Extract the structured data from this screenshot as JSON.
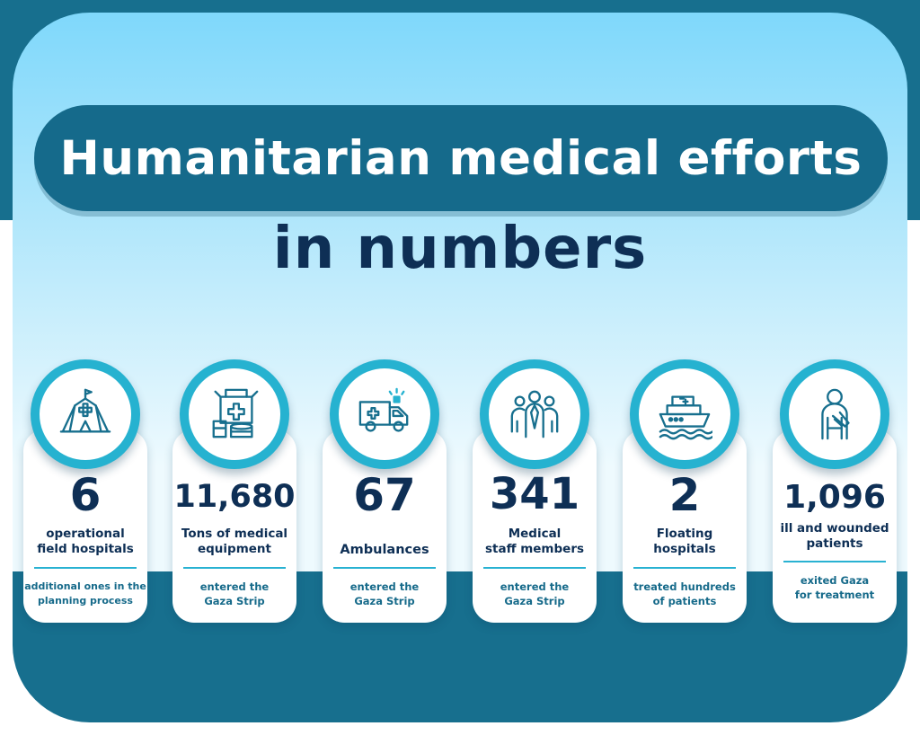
{
  "header": {
    "title": "Humanitarian medical efforts",
    "subtitle": "in numbers"
  },
  "colors": {
    "brand_teal": "#176f8e",
    "navy_text": "#0e2f55",
    "accent_cyan": "#26b2d0"
  },
  "cards": [
    {
      "icon": "field-hospital-tent-icon",
      "number": "6",
      "label": "operational\nfield hospitals",
      "note": "additional ones in the\nplanning process"
    },
    {
      "icon": "medical-supplies-boxes-icon",
      "number": "11,680",
      "label": "Tons of medical\nequipment",
      "note": "entered the\nGaza Strip"
    },
    {
      "icon": "ambulance-icon",
      "number": "67",
      "label": "Ambulances",
      "note": "entered the\nGaza Strip"
    },
    {
      "icon": "medical-staff-icon",
      "number": "341",
      "label": "Medical\nstaff members",
      "note": "entered the\nGaza Strip"
    },
    {
      "icon": "floating-hospital-ship-icon",
      "number": "2",
      "label": "Floating\nhospitals",
      "note": "treated hundreds\nof patients"
    },
    {
      "icon": "wounded-patient-icon",
      "number": "1,096",
      "label": "ill and wounded\npatients",
      "note": "exited Gaza\nfor treatment"
    }
  ]
}
